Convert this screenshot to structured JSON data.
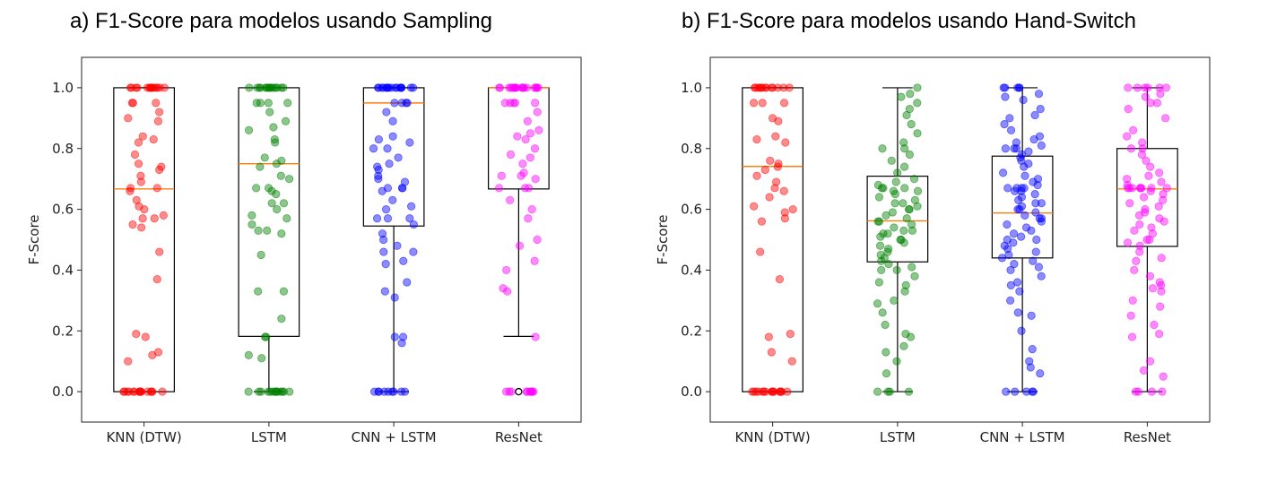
{
  "chart_data": [
    {
      "type": "box",
      "title": "a) F1-Score para modelos usando Sampling",
      "ylabel": "F-Score",
      "ylim": [
        -0.1,
        1.1
      ],
      "yticks": [
        "0.0",
        "0.2",
        "0.4",
        "0.6",
        "0.8",
        "1.0"
      ],
      "categories": [
        "KNN (DTW)",
        "LSTM",
        "CNN + LSTM",
        "ResNet"
      ],
      "colors": [
        "#ff0000",
        "#008000",
        "#0000ff",
        "#ff00ff"
      ],
      "boxes": [
        {
          "whisker_low": 0.0,
          "q1": 0.0,
          "median": 0.667,
          "q3": 1.0,
          "whisker_high": 1.0
        },
        {
          "whisker_low": 0.0,
          "q1": 0.182,
          "median": 0.75,
          "q3": 1.0,
          "whisker_high": 1.0
        },
        {
          "whisker_low": 0.0,
          "q1": 0.545,
          "median": 0.95,
          "q3": 1.0,
          "whisker_high": 1.0
        },
        {
          "whisker_low": 0.182,
          "q1": 0.667,
          "median": 1.0,
          "q3": 1.0,
          "whisker_high": 1.0
        }
      ],
      "outliers": [
        [],
        [],
        [],
        [
          0.0
        ]
      ],
      "points": [
        [
          1,
          1,
          1,
          1,
          1,
          1,
          1,
          1,
          1,
          1,
          1,
          1,
          1,
          1,
          1,
          0.95,
          0.95,
          0.95,
          0.92,
          0.89,
          0.9,
          0.84,
          0.83,
          0.82,
          0.78,
          0.75,
          0.74,
          0.73,
          0.71,
          0.69,
          0.67,
          0.67,
          0.66,
          0.63,
          0.61,
          0.6,
          0.58,
          0.57,
          0.57,
          0.55,
          0.54,
          0.46,
          0.37,
          0.19,
          0.18,
          0.13,
          0.12,
          0.1,
          0,
          0,
          0,
          0,
          0,
          0,
          0,
          0,
          0,
          0,
          0,
          0,
          0,
          0,
          0,
          0
        ],
        [
          1,
          1,
          1,
          1,
          1,
          1,
          1,
          1,
          1,
          1,
          1,
          1,
          1,
          1,
          1,
          0.95,
          0.95,
          0.95,
          0.95,
          0.92,
          0.89,
          0.87,
          0.86,
          0.83,
          0.82,
          0.77,
          0.76,
          0.75,
          0.74,
          0.71,
          0.7,
          0.67,
          0.67,
          0.66,
          0.65,
          0.62,
          0.62,
          0.6,
          0.58,
          0.57,
          0.55,
          0.53,
          0.53,
          0.52,
          0.45,
          0.33,
          0.33,
          0.24,
          0.18,
          0.18,
          0.12,
          0.11,
          0,
          0,
          0,
          0,
          0,
          0,
          0,
          0,
          0,
          0,
          0,
          0,
          0,
          0
        ],
        [
          1,
          1,
          1,
          1,
          1,
          1,
          1,
          1,
          1,
          1,
          1,
          1,
          1,
          1,
          1,
          1,
          1,
          0.95,
          0.95,
          0.95,
          0.95,
          0.92,
          0.89,
          0.84,
          0.83,
          0.82,
          0.8,
          0.8,
          0.77,
          0.75,
          0.74,
          0.73,
          0.71,
          0.7,
          0.69,
          0.67,
          0.67,
          0.67,
          0.66,
          0.63,
          0.61,
          0.6,
          0.57,
          0.57,
          0.57,
          0.55,
          0.52,
          0.5,
          0.48,
          0.46,
          0.46,
          0.43,
          0.42,
          0.36,
          0.33,
          0.31,
          0.18,
          0.18,
          0.16,
          0,
          0,
          0,
          0,
          0,
          0,
          0,
          0,
          0
        ],
        [
          1,
          1,
          1,
          1,
          1,
          1,
          1,
          1,
          1,
          1,
          1,
          1,
          1,
          1,
          1,
          1,
          1,
          1,
          1,
          1,
          0.95,
          0.95,
          0.95,
          0.95,
          0.95,
          0.92,
          0.89,
          0.86,
          0.85,
          0.84,
          0.83,
          0.8,
          0.78,
          0.77,
          0.75,
          0.72,
          0.71,
          0.71,
          0.7,
          0.67,
          0.67,
          0.67,
          0.63,
          0.6,
          0.57,
          0.5,
          0.48,
          0.43,
          0.4,
          0.34,
          0.33,
          0.18,
          0,
          0,
          0,
          0,
          0,
          0,
          0,
          0,
          0,
          0
        ]
      ]
    },
    {
      "type": "box",
      "title": "b) F1-Score para modelos usando Hand-Switch",
      "ylabel": "F-Score",
      "ylim": [
        -0.1,
        1.1
      ],
      "yticks": [
        "0.0",
        "0.2",
        "0.4",
        "0.6",
        "0.8",
        "1.0"
      ],
      "categories": [
        "KNN (DTW)",
        "LSTM",
        "CNN + LSTM",
        "ResNet"
      ],
      "colors": [
        "#ff0000",
        "#008000",
        "#0000ff",
        "#ff00ff"
      ],
      "boxes": [
        {
          "whisker_low": 0.0,
          "q1": 0.0,
          "median": 0.741,
          "q3": 1.0,
          "whisker_high": 1.0
        },
        {
          "whisker_low": 0.0,
          "q1": 0.427,
          "median": 0.562,
          "q3": 0.709,
          "whisker_high": 1.0
        },
        {
          "whisker_low": 0.0,
          "q1": 0.44,
          "median": 0.588,
          "q3": 0.775,
          "whisker_high": 1.0
        },
        {
          "whisker_low": 0.0,
          "q1": 0.478,
          "median": 0.667,
          "q3": 0.8,
          "whisker_high": 1.0
        }
      ],
      "outliers": [
        [],
        [],
        [],
        []
      ],
      "points": [
        [
          1,
          1,
          1,
          1,
          1,
          1,
          1,
          1,
          1,
          1,
          1,
          1,
          1,
          0.95,
          0.95,
          0.95,
          0.9,
          0.89,
          0.84,
          0.83,
          0.82,
          0.76,
          0.75,
          0.74,
          0.73,
          0.71,
          0.69,
          0.67,
          0.66,
          0.64,
          0.61,
          0.6,
          0.59,
          0.57,
          0.56,
          0.46,
          0.37,
          0.19,
          0.18,
          0.13,
          0.1,
          0,
          0,
          0,
          0,
          0,
          0,
          0,
          0,
          0,
          0,
          0,
          0,
          0,
          0,
          0,
          0
        ],
        [
          1,
          0.98,
          0.97,
          0.95,
          0.93,
          0.91,
          0.88,
          0.85,
          0.82,
          0.8,
          0.8,
          0.78,
          0.76,
          0.74,
          0.72,
          0.7,
          0.69,
          0.68,
          0.67,
          0.67,
          0.67,
          0.66,
          0.66,
          0.65,
          0.64,
          0.63,
          0.62,
          0.62,
          0.61,
          0.6,
          0.6,
          0.59,
          0.58,
          0.57,
          0.56,
          0.56,
          0.55,
          0.54,
          0.53,
          0.53,
          0.52,
          0.52,
          0.51,
          0.5,
          0.5,
          0.49,
          0.48,
          0.47,
          0.46,
          0.45,
          0.44,
          0.43,
          0.42,
          0.41,
          0.4,
          0.4,
          0.38,
          0.36,
          0.35,
          0.33,
          0.3,
          0.29,
          0.26,
          0.22,
          0.19,
          0.18,
          0.15,
          0.13,
          0.1,
          0.06,
          0,
          0,
          0,
          0
        ],
        [
          1,
          1,
          1,
          1,
          1,
          0.98,
          0.97,
          0.96,
          0.93,
          0.91,
          0.9,
          0.88,
          0.86,
          0.84,
          0.83,
          0.82,
          0.81,
          0.8,
          0.8,
          0.8,
          0.79,
          0.78,
          0.77,
          0.76,
          0.75,
          0.74,
          0.72,
          0.71,
          0.7,
          0.69,
          0.68,
          0.67,
          0.67,
          0.67,
          0.67,
          0.66,
          0.66,
          0.65,
          0.64,
          0.63,
          0.62,
          0.62,
          0.61,
          0.6,
          0.6,
          0.59,
          0.58,
          0.57,
          0.57,
          0.56,
          0.55,
          0.54,
          0.53,
          0.52,
          0.51,
          0.5,
          0.5,
          0.49,
          0.48,
          0.47,
          0.46,
          0.45,
          0.44,
          0.43,
          0.42,
          0.41,
          0.4,
          0.38,
          0.36,
          0.35,
          0.33,
          0.3,
          0.26,
          0.25,
          0.2,
          0.14,
          0.1,
          0.08,
          0.06,
          0,
          0,
          0,
          0,
          0
        ],
        [
          1,
          1,
          1,
          1,
          1,
          1,
          0.98,
          0.97,
          0.95,
          0.95,
          0.93,
          0.9,
          0.86,
          0.84,
          0.82,
          0.8,
          0.8,
          0.78,
          0.76,
          0.74,
          0.72,
          0.71,
          0.7,
          0.69,
          0.68,
          0.67,
          0.67,
          0.67,
          0.67,
          0.67,
          0.67,
          0.67,
          0.67,
          0.66,
          0.65,
          0.64,
          0.63,
          0.62,
          0.61,
          0.6,
          0.59,
          0.58,
          0.57,
          0.56,
          0.55,
          0.54,
          0.53,
          0.52,
          0.5,
          0.5,
          0.49,
          0.48,
          0.46,
          0.44,
          0.43,
          0.4,
          0.38,
          0.36,
          0.35,
          0.34,
          0.33,
          0.3,
          0.28,
          0.25,
          0.22,
          0.19,
          0.18,
          0.1,
          0.07,
          0.05,
          0,
          0,
          0,
          0
        ]
      ]
    }
  ]
}
